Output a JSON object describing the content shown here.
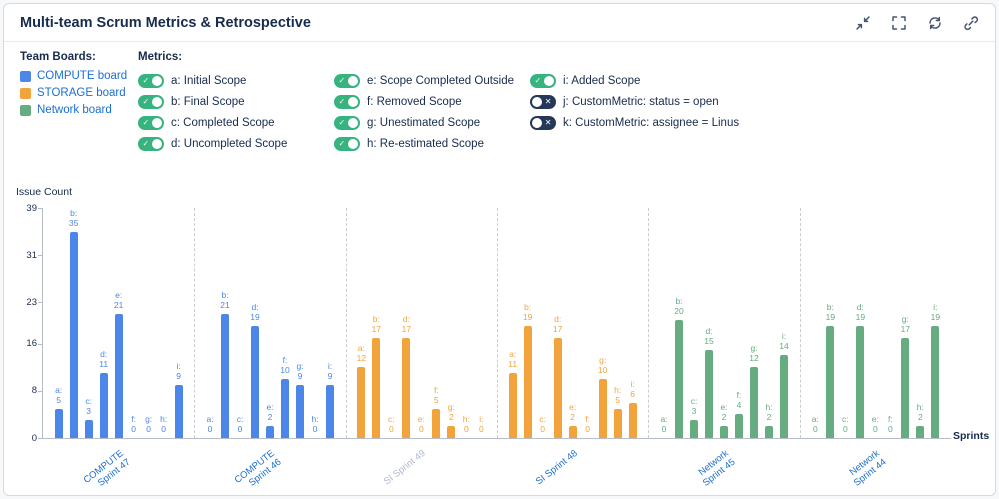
{
  "header": {
    "title": "Multi-team Scrum Metrics & Retrospective"
  },
  "toolbar": {
    "icons": [
      "collapse-icon",
      "fullscreen-icon",
      "refresh-icon",
      "link-icon"
    ]
  },
  "colors": {
    "compute_blue": "#4c86e8",
    "storage_orange": "#f2a33c",
    "network_green": "#67ab81",
    "toggle_on": "#36b37e",
    "toggle_off": "#253858",
    "link": "#1c6ed2",
    "muted_label": "#aeb9cc",
    "text": "#172b4d"
  },
  "legend": {
    "team_boards_label": "Team Boards:",
    "boards": [
      {
        "name": "COMPUTE board",
        "color": "#4c86e8"
      },
      {
        "name": "STORAGE board",
        "color": "#f2a33c"
      },
      {
        "name": "Network board",
        "color": "#67ab81"
      }
    ],
    "metrics_label": "Metrics:",
    "toggle_on_glyph": "✓",
    "toggle_off_glyph": "✕",
    "metrics": [
      {
        "label": "a: Initial Scope",
        "enabled": true
      },
      {
        "label": "b: Final Scope",
        "enabled": true
      },
      {
        "label": "c: Completed Scope",
        "enabled": true
      },
      {
        "label": "d: Uncompleted Scope",
        "enabled": true
      },
      {
        "label": "e: Scope Completed Outside",
        "enabled": true
      },
      {
        "label": "f: Removed Scope",
        "enabled": true
      },
      {
        "label": "g: Unestimated Scope",
        "enabled": true
      },
      {
        "label": "h: Re-estimated Scope",
        "enabled": true
      },
      {
        "label": "i: Added Scope",
        "enabled": true
      },
      {
        "label": "j: CustomMetric: status = open",
        "enabled": false
      },
      {
        "label": "k: CustomMetric: assignee = Linus",
        "enabled": false
      }
    ]
  },
  "chart_data": {
    "type": "bar",
    "title": "",
    "ylabel": "Issue Count",
    "xlabel": "Sprints",
    "ymax": 39,
    "yticks": [
      0,
      8,
      16,
      23,
      31,
      39
    ],
    "grid": false,
    "legend_position": "top-left",
    "metric_keys": [
      "a",
      "b",
      "c",
      "d",
      "e",
      "f",
      "g",
      "h",
      "i"
    ],
    "series": [
      {
        "name": "COMPUTE Sprint 47",
        "label": "COMPUTE\nSprint 47",
        "board": "COMPUTE board",
        "color": "#4c86e8",
        "muted": false,
        "values": [
          5,
          35,
          3,
          11,
          21,
          0,
          0,
          0,
          9
        ]
      },
      {
        "name": "COMPUTE Sprint 46",
        "label": "COMPUTE\nSprint 46",
        "board": "COMPUTE board",
        "color": "#4c86e8",
        "muted": false,
        "values": [
          0,
          21,
          0,
          19,
          2,
          10,
          9,
          0,
          9
        ]
      },
      {
        "name": "SI Sprint 49",
        "label": "SI Sprint 49",
        "board": "STORAGE board",
        "color": "#f2a33c",
        "muted": true,
        "values": [
          12,
          17,
          0,
          17,
          0,
          5,
          2,
          0,
          0
        ]
      },
      {
        "name": "SI Sprint 48",
        "label": "SI Sprint 48",
        "board": "STORAGE board",
        "color": "#f2a33c",
        "muted": false,
        "values": [
          11,
          19,
          0,
          17,
          2,
          0,
          10,
          5,
          6
        ]
      },
      {
        "name": "Network Sprint 45",
        "label": "Network\nSprint 45",
        "board": "Network board",
        "color": "#67ab81",
        "muted": false,
        "values": [
          0,
          20,
          3,
          15,
          2,
          4,
          12,
          2,
          14
        ]
      },
      {
        "name": "Network Sprint 44",
        "label": "Network\nSprint 44",
        "board": "Network board",
        "color": "#67ab81",
        "muted": false,
        "values": [
          0,
          19,
          0,
          19,
          0,
          0,
          17,
          2,
          19
        ]
      }
    ]
  }
}
